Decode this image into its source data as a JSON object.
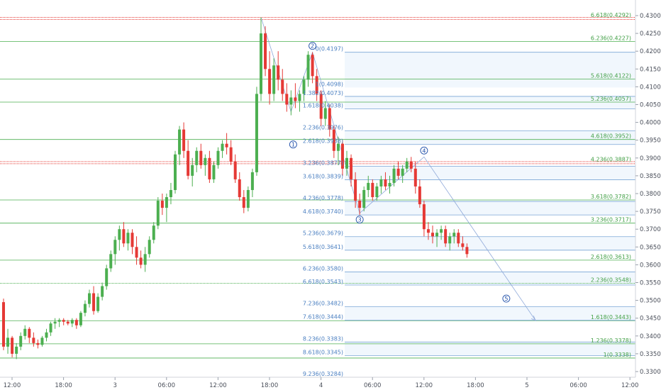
{
  "chart_data": {
    "type": "candlestick",
    "title": "",
    "xlabel": "",
    "ylabel": "",
    "ylim": [
      0.3265,
      0.4315
    ],
    "grid": false,
    "colors": {
      "up": "#4caf50",
      "down": "#e53935",
      "fib_green": "#4caf50",
      "fib_blue": "#1e88e5",
      "dotted_red": "#e53935"
    },
    "y_ticks": [
      "0.4300",
      "0.4250",
      "0.4200",
      "0.4150",
      "0.4100",
      "0.4050",
      "0.4000",
      "0.3950",
      "0.3900",
      "0.3850",
      "0.3800",
      "0.3750",
      "0.3700",
      "0.3650",
      "0.3600",
      "0.3550",
      "0.3500",
      "0.3450",
      "0.3400",
      "0.3350",
      "0.3300"
    ],
    "x_ticks": [
      {
        "label": "12:00",
        "bar": 0
      },
      {
        "label": "18:00",
        "bar": 12
      },
      {
        "label": "3",
        "bar": 24
      },
      {
        "label": "06:00",
        "bar": 36
      },
      {
        "label": "12:00",
        "bar": 48
      },
      {
        "label": "18:00",
        "bar": 60
      },
      {
        "label": "4",
        "bar": 72
      },
      {
        "label": "06:00",
        "bar": 84
      },
      {
        "label": "12:00",
        "bar": 96
      },
      {
        "label": "18:00",
        "bar": 108
      },
      {
        "label": "5",
        "bar": 120
      },
      {
        "label": "06:00",
        "bar": 132
      },
      {
        "label": "12:00",
        "bar": 144
      }
    ],
    "candles": [
      [
        0.3495,
        0.3505,
        0.336,
        0.337
      ],
      [
        0.337,
        0.342,
        0.335,
        0.3395
      ],
      [
        0.3395,
        0.34,
        0.334,
        0.335
      ],
      [
        0.335,
        0.338,
        0.3335,
        0.337
      ],
      [
        0.337,
        0.341,
        0.336,
        0.34
      ],
      [
        0.34,
        0.343,
        0.339,
        0.342
      ],
      [
        0.342,
        0.3425,
        0.338,
        0.3395
      ],
      [
        0.3395,
        0.341,
        0.337,
        0.338
      ],
      [
        0.338,
        0.339,
        0.3365,
        0.3375
      ],
      [
        0.3375,
        0.34,
        0.337,
        0.3395
      ],
      [
        0.3395,
        0.342,
        0.3385,
        0.341
      ],
      [
        0.341,
        0.344,
        0.34,
        0.3435
      ],
      [
        0.3435,
        0.345,
        0.342,
        0.344
      ],
      [
        0.344,
        0.345,
        0.3425,
        0.3445
      ],
      [
        0.3445,
        0.345,
        0.343,
        0.344
      ],
      [
        0.344,
        0.3445,
        0.343,
        0.3435
      ],
      [
        0.3435,
        0.345,
        0.3425,
        0.3445
      ],
      [
        0.3445,
        0.345,
        0.342,
        0.343
      ],
      [
        0.343,
        0.347,
        0.3425,
        0.3465
      ],
      [
        0.3465,
        0.35,
        0.3455,
        0.349
      ],
      [
        0.349,
        0.353,
        0.348,
        0.352
      ],
      [
        0.352,
        0.354,
        0.346,
        0.347
      ],
      [
        0.347,
        0.352,
        0.3465,
        0.351
      ],
      [
        0.351,
        0.355,
        0.35,
        0.354
      ],
      [
        0.354,
        0.36,
        0.353,
        0.359
      ],
      [
        0.359,
        0.364,
        0.358,
        0.363
      ],
      [
        0.363,
        0.368,
        0.36,
        0.367
      ],
      [
        0.367,
        0.371,
        0.364,
        0.37
      ],
      [
        0.37,
        0.372,
        0.365,
        0.366
      ],
      [
        0.366,
        0.37,
        0.364,
        0.369
      ],
      [
        0.369,
        0.37,
        0.363,
        0.365
      ],
      [
        0.365,
        0.368,
        0.36,
        0.362
      ],
      [
        0.362,
        0.364,
        0.359,
        0.36
      ],
      [
        0.36,
        0.365,
        0.358,
        0.363
      ],
      [
        0.363,
        0.368,
        0.362,
        0.367
      ],
      [
        0.367,
        0.372,
        0.366,
        0.371
      ],
      [
        0.371,
        0.379,
        0.37,
        0.378
      ],
      [
        0.378,
        0.38,
        0.374,
        0.376
      ],
      [
        0.376,
        0.38,
        0.372,
        0.379
      ],
      [
        0.379,
        0.383,
        0.377,
        0.381
      ],
      [
        0.381,
        0.392,
        0.38,
        0.391
      ],
      [
        0.391,
        0.399,
        0.388,
        0.398
      ],
      [
        0.398,
        0.4,
        0.39,
        0.392
      ],
      [
        0.392,
        0.395,
        0.384,
        0.385
      ],
      [
        0.385,
        0.39,
        0.382,
        0.388
      ],
      [
        0.388,
        0.393,
        0.386,
        0.392
      ],
      [
        0.392,
        0.394,
        0.387,
        0.388
      ],
      [
        0.388,
        0.391,
        0.385,
        0.39
      ],
      [
        0.39,
        0.392,
        0.383,
        0.384
      ],
      [
        0.384,
        0.389,
        0.383,
        0.388
      ],
      [
        0.388,
        0.393,
        0.387,
        0.392
      ],
      [
        0.392,
        0.395,
        0.39,
        0.394
      ],
      [
        0.394,
        0.397,
        0.391,
        0.393
      ],
      [
        0.393,
        0.395,
        0.388,
        0.389
      ],
      [
        0.389,
        0.391,
        0.383,
        0.384
      ],
      [
        0.384,
        0.386,
        0.378,
        0.379
      ],
      [
        0.379,
        0.381,
        0.3745,
        0.376
      ],
      [
        0.376,
        0.382,
        0.375,
        0.381
      ],
      [
        0.381,
        0.387,
        0.379,
        0.386
      ],
      [
        0.386,
        0.41,
        0.385,
        0.408
      ],
      [
        0.408,
        0.4295,
        0.406,
        0.425
      ],
      [
        0.425,
        0.427,
        0.413,
        0.415
      ],
      [
        0.415,
        0.42,
        0.405,
        0.408
      ],
      [
        0.408,
        0.418,
        0.406,
        0.416
      ],
      [
        0.416,
        0.42,
        0.409,
        0.412
      ],
      [
        0.412,
        0.415,
        0.406,
        0.408
      ],
      [
        0.408,
        0.411,
        0.403,
        0.405
      ],
      [
        0.405,
        0.409,
        0.402,
        0.407
      ],
      [
        0.407,
        0.411,
        0.404,
        0.406
      ],
      [
        0.406,
        0.409,
        0.403,
        0.408
      ],
      [
        0.408,
        0.413,
        0.406,
        0.412
      ],
      [
        0.412,
        0.42,
        0.41,
        0.419
      ],
      [
        0.419,
        0.4197,
        0.411,
        0.413
      ],
      [
        0.413,
        0.415,
        0.406,
        0.408
      ],
      [
        0.408,
        0.409,
        0.399,
        0.401
      ],
      [
        0.401,
        0.406,
        0.399,
        0.404
      ],
      [
        0.404,
        0.405,
        0.396,
        0.398
      ],
      [
        0.398,
        0.399,
        0.39,
        0.392
      ],
      [
        0.392,
        0.396,
        0.388,
        0.394
      ],
      [
        0.394,
        0.395,
        0.385,
        0.387
      ],
      [
        0.387,
        0.392,
        0.385,
        0.39
      ],
      [
        0.39,
        0.391,
        0.382,
        0.384
      ],
      [
        0.384,
        0.386,
        0.376,
        0.378
      ],
      [
        0.378,
        0.38,
        0.374,
        0.376
      ],
      [
        0.376,
        0.382,
        0.375,
        0.381
      ],
      [
        0.381,
        0.385,
        0.379,
        0.383
      ],
      [
        0.383,
        0.384,
        0.378,
        0.379
      ],
      [
        0.379,
        0.383,
        0.378,
        0.382
      ],
      [
        0.382,
        0.385,
        0.38,
        0.384
      ],
      [
        0.384,
        0.386,
        0.381,
        0.382
      ],
      [
        0.382,
        0.385,
        0.38,
        0.383
      ],
      [
        0.383,
        0.388,
        0.382,
        0.387
      ],
      [
        0.387,
        0.389,
        0.384,
        0.385
      ],
      [
        0.385,
        0.388,
        0.383,
        0.387
      ],
      [
        0.387,
        0.39,
        0.386,
        0.389
      ],
      [
        0.389,
        0.3903,
        0.386,
        0.387
      ],
      [
        0.387,
        0.389,
        0.38,
        0.382
      ],
      [
        0.382,
        0.384,
        0.376,
        0.377
      ],
      [
        0.377,
        0.378,
        0.368,
        0.37
      ],
      [
        0.37,
        0.372,
        0.367,
        0.369
      ],
      [
        0.369,
        0.371,
        0.366,
        0.368
      ],
      [
        0.368,
        0.37,
        0.365,
        0.369
      ],
      [
        0.369,
        0.371,
        0.367,
        0.37
      ],
      [
        0.37,
        0.371,
        0.365,
        0.366
      ],
      [
        0.366,
        0.369,
        0.364,
        0.368
      ],
      [
        0.368,
        0.37,
        0.366,
        0.369
      ],
      [
        0.369,
        0.37,
        0.365,
        0.366
      ],
      [
        0.366,
        0.368,
        0.364,
        0.365
      ],
      [
        0.365,
        0.366,
        0.362,
        0.363
      ]
    ],
    "price_lines": [
      {
        "label": "6.618(0.4292)",
        "value": 0.4292,
        "style": "red-dotted",
        "label_color": "green"
      },
      {
        "label": "6.236(0.4227)",
        "value": 0.4227,
        "style": "green",
        "label_color": "green"
      },
      {
        "label": "0(0.4197)",
        "value": 0.4197,
        "style": "blue",
        "label_color": "blue"
      },
      {
        "label": "5.618(0.4122)",
        "value": 0.4122,
        "style": "green",
        "label_color": "green"
      },
      {
        "label": "1(0.4098)",
        "value": 0.4098,
        "style": "none",
        "label_color": "blue"
      },
      {
        "label": "1.382(0.4073)",
        "value": 0.4073,
        "style": "blue",
        "label_color": "blue"
      },
      {
        "label": "5.236(0.4057)",
        "value": 0.4057,
        "style": "green",
        "label_color": "green"
      },
      {
        "label": "1.618(0.4038)",
        "value": 0.4038,
        "style": "blue",
        "label_color": "blue"
      },
      {
        "label": "2.236(0.3976)",
        "value": 0.3976,
        "style": "blue",
        "label_color": "blue"
      },
      {
        "label": "4.618(0.3952)",
        "value": 0.3952,
        "style": "green",
        "label_color": "green"
      },
      {
        "label": "2.618(0.3938)",
        "value": 0.3938,
        "style": "blue",
        "label_color": "blue"
      },
      {
        "label": "4.236(0.3887)",
        "value": 0.3887,
        "style": "red-dotted",
        "label_color": "green"
      },
      {
        "label": "3.236(0.3877)",
        "value": 0.3877,
        "style": "blue",
        "label_color": "blue"
      },
      {
        "label": "3.618(0.3839)",
        "value": 0.3839,
        "style": "blue",
        "label_color": "blue"
      },
      {
        "label": "3.618(0.3782)",
        "value": 0.3782,
        "style": "green",
        "label_color": "green"
      },
      {
        "label": "4.236(0.3778)",
        "value": 0.3778,
        "style": "blue",
        "label_color": "blue"
      },
      {
        "label": "4.618(0.3740)",
        "value": 0.374,
        "style": "blue",
        "label_color": "blue"
      },
      {
        "label": "3.236(0.3717)",
        "value": 0.3717,
        "style": "green",
        "label_color": "green"
      },
      {
        "label": "5.236(0.3679)",
        "value": 0.3679,
        "style": "blue",
        "label_color": "blue"
      },
      {
        "label": "5.618(0.3641)",
        "value": 0.3641,
        "style": "blue",
        "label_color": "blue"
      },
      {
        "label": "2.618(0.3613)",
        "value": 0.3613,
        "style": "green",
        "label_color": "green"
      },
      {
        "label": "6.236(0.3580)",
        "value": 0.358,
        "style": "blue",
        "label_color": "blue"
      },
      {
        "label": "2.236(0.3548)",
        "value": 0.3548,
        "style": "green-dotted",
        "label_color": "green"
      },
      {
        "label": "6.618(0.3543)",
        "value": 0.3543,
        "style": "blue",
        "label_color": "blue"
      },
      {
        "label": "7.236(0.3482)",
        "value": 0.3482,
        "style": "blue",
        "label_color": "blue"
      },
      {
        "label": "1.618(0.3443)",
        "value": 0.3443,
        "style": "green",
        "label_color": "green"
      },
      {
        "label": "7.618(0.3444)",
        "value": 0.3444,
        "style": "blue",
        "label_color": "blue"
      },
      {
        "label": "8.236(0.3383)",
        "value": 0.3383,
        "style": "blue",
        "label_color": "blue"
      },
      {
        "label": "1.236(0.3378)",
        "value": 0.3378,
        "style": "green",
        "label_color": "green"
      },
      {
        "label": "8.618(0.3345)",
        "value": 0.3345,
        "style": "blue",
        "label_color": "blue"
      },
      {
        "label": "1(0.3338)",
        "value": 0.3338,
        "style": "green",
        "label_color": "green"
      },
      {
        "label": "9.236(0.3284)",
        "value": 0.3284,
        "style": "none",
        "label_color": "blue"
      }
    ],
    "wave_points": [
      {
        "label": "1",
        "bar": 67.5,
        "value": 0.3938
      },
      {
        "label": "2",
        "bar": 72,
        "value": 0.4197
      },
      {
        "label": "3",
        "bar": 83,
        "value": 0.3745
      },
      {
        "label": "4",
        "bar": 98,
        "value": 0.3903
      },
      {
        "label": "5",
        "bar": 118,
        "value": 0.3525
      }
    ],
    "wave_path": [
      {
        "bar": 60,
        "value": 0.4295
      },
      {
        "bar": 67,
        "value": 0.403
      },
      {
        "bar": 72,
        "value": 0.4197
      },
      {
        "bar": 83,
        "value": 0.3745
      },
      {
        "bar": 98,
        "value": 0.3903
      },
      {
        "bar": 124,
        "value": 0.3443
      }
    ]
  }
}
